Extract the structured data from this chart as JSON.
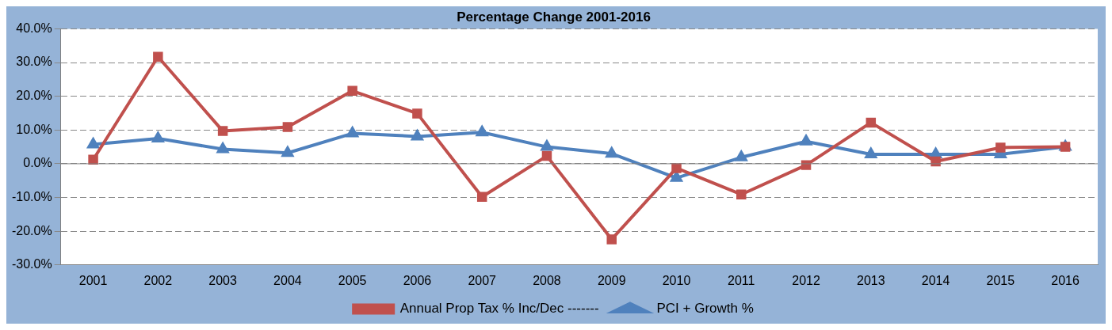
{
  "chart_data": {
    "type": "line",
    "title": "Percentage Change 2001-2016",
    "categories": [
      "2001",
      "2002",
      "2003",
      "2004",
      "2005",
      "2006",
      "2007",
      "2008",
      "2009",
      "2010",
      "2011",
      "2012",
      "2013",
      "2014",
      "2015",
      "2016"
    ],
    "series": [
      {
        "name": "PCI + Growth %",
        "color": "#4f81bd",
        "marker": "triangle",
        "values": [
          5.7,
          7.5,
          4.3,
          3.2,
          9.0,
          8.1,
          9.3,
          5.0,
          3.0,
          -4.2,
          1.9,
          6.6,
          2.8,
          2.8,
          2.8,
          5.0
        ]
      },
      {
        "name": "Annual Prop Tax % Inc/Dec -------",
        "color": "#c0504d",
        "marker": "square",
        "values": [
          1.2,
          31.7,
          9.7,
          10.9,
          21.6,
          14.9,
          -9.8,
          2.3,
          -22.4,
          -1.3,
          -9.1,
          -0.4,
          12.2,
          0.7,
          4.8,
          5.0
        ]
      }
    ],
    "ylim": [
      -30,
      40
    ],
    "yticks": [
      {
        "value": -30,
        "label": "-30.0%"
      },
      {
        "value": -20,
        "label": "-20.0%"
      },
      {
        "value": -10,
        "label": "-10.0%"
      },
      {
        "value": 0,
        "label": "0.0%"
      },
      {
        "value": 10,
        "label": "10.0%"
      },
      {
        "value": 20,
        "label": "20.0%"
      },
      {
        "value": 30,
        "label": "30.0%"
      },
      {
        "value": 40,
        "label": "40.0%"
      }
    ],
    "ref_lines": [
      {
        "axis": "y",
        "value": 0,
        "color": "#808080"
      }
    ],
    "grid": "y",
    "line_style": "solid",
    "legend": "bottom"
  }
}
